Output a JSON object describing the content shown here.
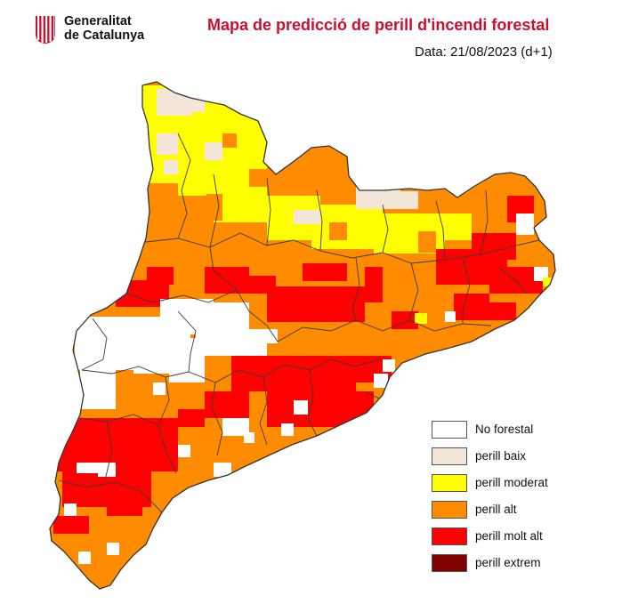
{
  "header": {
    "logo_line1": "Generalitat",
    "logo_line2": "de Catalunya",
    "logo_icon": "catalan-flag-stripes-icon",
    "title": "Mapa de predicció de perill d'incendi forestal",
    "date": "Data: 21/08/2023 (d+1)"
  },
  "colors": {
    "title": "#c8102e",
    "no_forestal": "#ffffff",
    "perill_baix": "#f3e6d8",
    "perill_moderat": "#ffff00",
    "perill_alt": "#ff8c00",
    "perill_molt_alt": "#ff0000",
    "perill_extrem": "#800000",
    "borders": "#3a3a3a"
  },
  "legend": [
    {
      "key": "no_forestal",
      "label": "No forestal",
      "color": "#ffffff"
    },
    {
      "key": "perill_baix",
      "label": "perill baix",
      "color": "#f3e6d8"
    },
    {
      "key": "perill_moderat",
      "label": "perill moderat",
      "color": "#ffff00"
    },
    {
      "key": "perill_alt",
      "label": "perill alt",
      "color": "#ff8c00"
    },
    {
      "key": "perill_molt_alt",
      "label": "perill molt alt",
      "color": "#ff0000"
    },
    {
      "key": "perill_extrem",
      "label": "perill extrem",
      "color": "#800000"
    }
  ]
}
